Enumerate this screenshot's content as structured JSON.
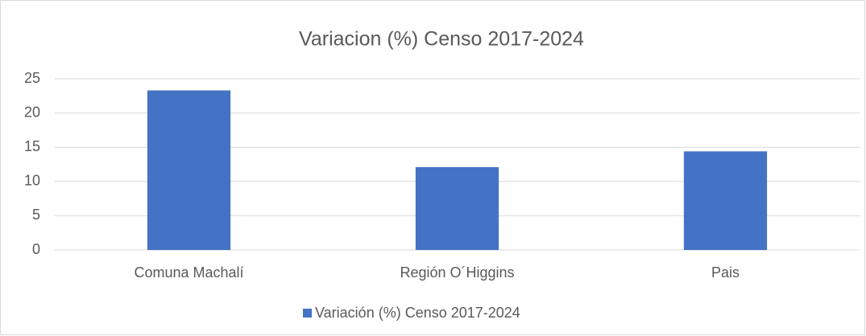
{
  "chart_data": {
    "type": "bar",
    "title": "Variacion (%) Censo 2017-2024",
    "categories": [
      "Comuna Machalí",
      "Región O´Higgins",
      "Pais"
    ],
    "series": [
      {
        "name": "Variación (%) Censo 2017-2024",
        "color": "#4472c4",
        "values": [
          23.3,
          12.1,
          14.4
        ]
      }
    ],
    "ylim": [
      0,
      25
    ],
    "yticks": [
      0,
      5,
      10,
      15,
      20,
      25
    ],
    "grid": true,
    "legend": "bottom"
  }
}
